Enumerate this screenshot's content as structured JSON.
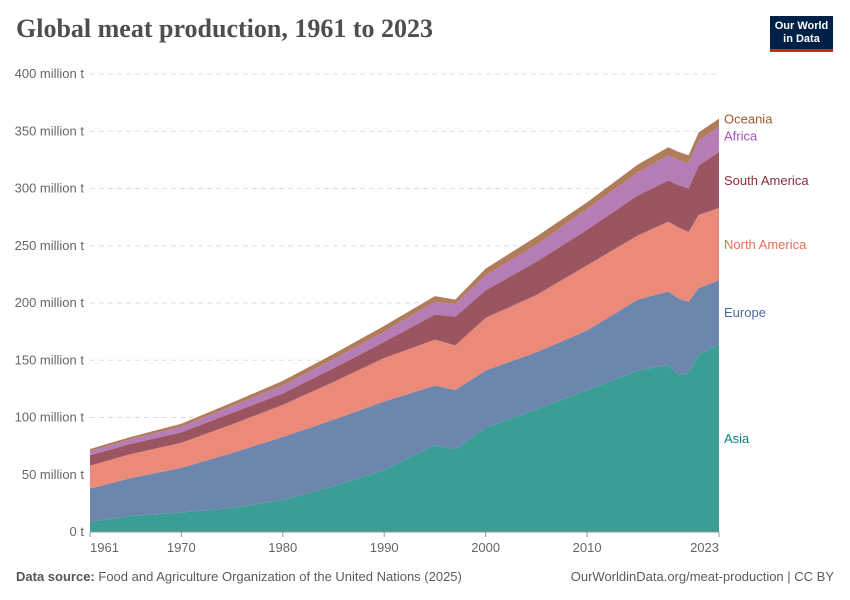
{
  "header": {
    "title": "Global meat production, 1961 to 2023",
    "logo_text": "Our World in Data"
  },
  "footer": {
    "source_label": "Data source:",
    "source": "Food and Agriculture Organization of the United Nations (2025)",
    "url": "OurWorldinData.org/meat-production | CC BY"
  },
  "chart_data": {
    "type": "area",
    "stacked": true,
    "title": "Global meat production, 1961 to 2023",
    "x": [
      1961,
      1965,
      1970,
      1975,
      1980,
      1985,
      1990,
      1995,
      1997,
      2000,
      2005,
      2010,
      2015,
      2018,
      2019,
      2020,
      2021,
      2023
    ],
    "xticks": [
      "1961",
      "1970",
      "1980",
      "1990",
      "2000",
      "2010",
      "2023"
    ],
    "xtick_values": [
      1961,
      1970,
      1980,
      1990,
      2000,
      2010,
      2023
    ],
    "yticks": [
      "0 t",
      "50 million t",
      "100 million t",
      "150 million t",
      "200 million t",
      "250 million t",
      "300 million t",
      "350 million t",
      "400 million t"
    ],
    "ylim": [
      0,
      400
    ],
    "unit": "million t",
    "grid": true,
    "legend_placement": "right",
    "series": [
      {
        "name": "Asia",
        "color": "#3a9e94",
        "label_color": "#00847e",
        "values": [
          9,
          14,
          17,
          21,
          28,
          40,
          54,
          76,
          72,
          91,
          107,
          124,
          141,
          146,
          137,
          139,
          155,
          164
        ]
      },
      {
        "name": "Europe",
        "color": "#6d86ad",
        "label_color": "#4c6a9c",
        "values": [
          29,
          33,
          39,
          48,
          55,
          58,
          60,
          52,
          52,
          50,
          50,
          52,
          62,
          64,
          67,
          62,
          58,
          56
        ]
      },
      {
        "name": "North America",
        "color": "#eb8a79",
        "label_color": "#e56e5a",
        "values": [
          20,
          21,
          22,
          25,
          28,
          33,
          38,
          40,
          39,
          46,
          50,
          57,
          56,
          61,
          62,
          61,
          64,
          63
        ]
      },
      {
        "name": "South America",
        "color": "#9b5561",
        "label_color": "#883039",
        "values": [
          9,
          9,
          9,
          10,
          10,
          12,
          14,
          22,
          25,
          24,
          29,
          31,
          35,
          36,
          37,
          38,
          43,
          49
        ]
      },
      {
        "name": "Africa",
        "color": "#b57cb6",
        "label_color": "#a652ba",
        "values": [
          3.5,
          4,
          5,
          6,
          7,
          8,
          9,
          11,
          11,
          13,
          15,
          18,
          20,
          22,
          22,
          22,
          22,
          22
        ]
      },
      {
        "name": "Oceania",
        "color": "#b07c5a",
        "label_color": "#a2582c",
        "values": [
          2,
          2,
          2.5,
          3,
          4,
          4.5,
          5,
          5,
          4,
          6,
          7,
          6,
          7,
          7,
          7,
          7,
          7,
          7
        ]
      }
    ]
  }
}
